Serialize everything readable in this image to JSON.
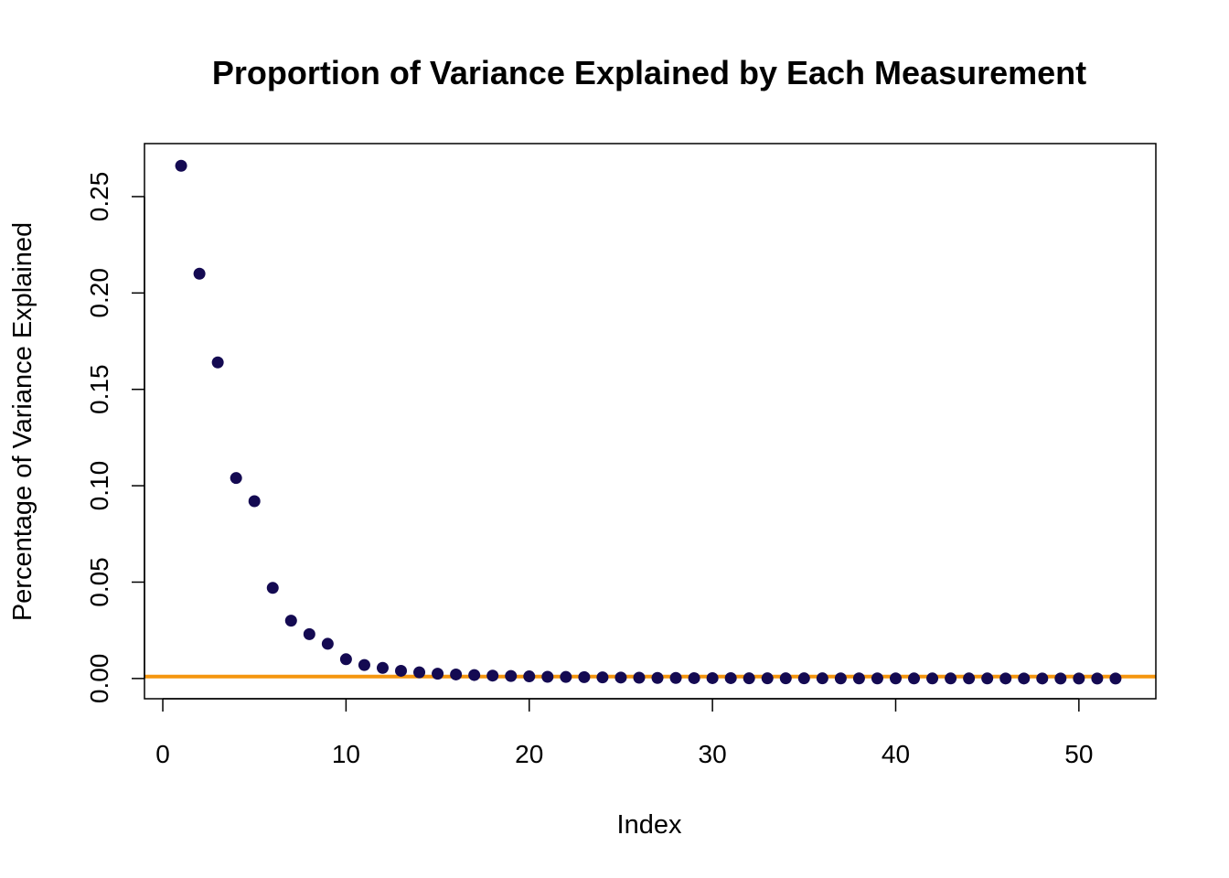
{
  "chart_data": {
    "type": "scatter",
    "title": "Proportion of Variance Explained by Each Measurement",
    "xlabel": "Index",
    "ylabel": "Percentage of Variance Explained",
    "xlim": [
      -1,
      54.2
    ],
    "ylim": [
      -0.0105,
      0.2775
    ],
    "x_ticks": [
      0,
      10,
      20,
      30,
      40,
      50
    ],
    "x_tick_labels": [
      "0",
      "10",
      "20",
      "30",
      "40",
      "50"
    ],
    "y_ticks": [
      0.0,
      0.05,
      0.1,
      0.15,
      0.2,
      0.25
    ],
    "y_tick_labels": [
      "0.00",
      "0.05",
      "0.10",
      "0.15",
      "0.20",
      "0.25"
    ],
    "grid": false,
    "point_color": "#140a52",
    "reference_line": {
      "orientation": "horizontal",
      "y": 0.001,
      "color": "#f5960f"
    },
    "x": [
      1,
      2,
      3,
      4,
      5,
      6,
      7,
      8,
      9,
      10,
      11,
      12,
      13,
      14,
      15,
      16,
      17,
      18,
      19,
      20,
      21,
      22,
      23,
      24,
      25,
      26,
      27,
      28,
      29,
      30,
      31,
      32,
      33,
      34,
      35,
      36,
      37,
      38,
      39,
      40,
      41,
      42,
      43,
      44,
      45,
      46,
      47,
      48,
      49,
      50,
      51,
      52
    ],
    "values": [
      0.266,
      0.21,
      0.164,
      0.104,
      0.092,
      0.047,
      0.03,
      0.023,
      0.018,
      0.01,
      0.007,
      0.0055,
      0.004,
      0.0032,
      0.0025,
      0.0021,
      0.0018,
      0.0015,
      0.0013,
      0.0011,
      0.0009,
      0.0008,
      0.0007,
      0.0006,
      0.0005,
      0.0004,
      0.0003,
      0.0003,
      0.0002,
      0.0002,
      0.0002,
      0.0001,
      0.0001,
      0.0001,
      0.0001,
      0.0001,
      5e-05,
      5e-05,
      5e-05,
      5e-05,
      4e-05,
      4e-05,
      3e-05,
      3e-05,
      3e-05,
      2e-05,
      2e-05,
      2e-05,
      1e-05,
      1e-05,
      1e-05,
      1e-05
    ]
  }
}
